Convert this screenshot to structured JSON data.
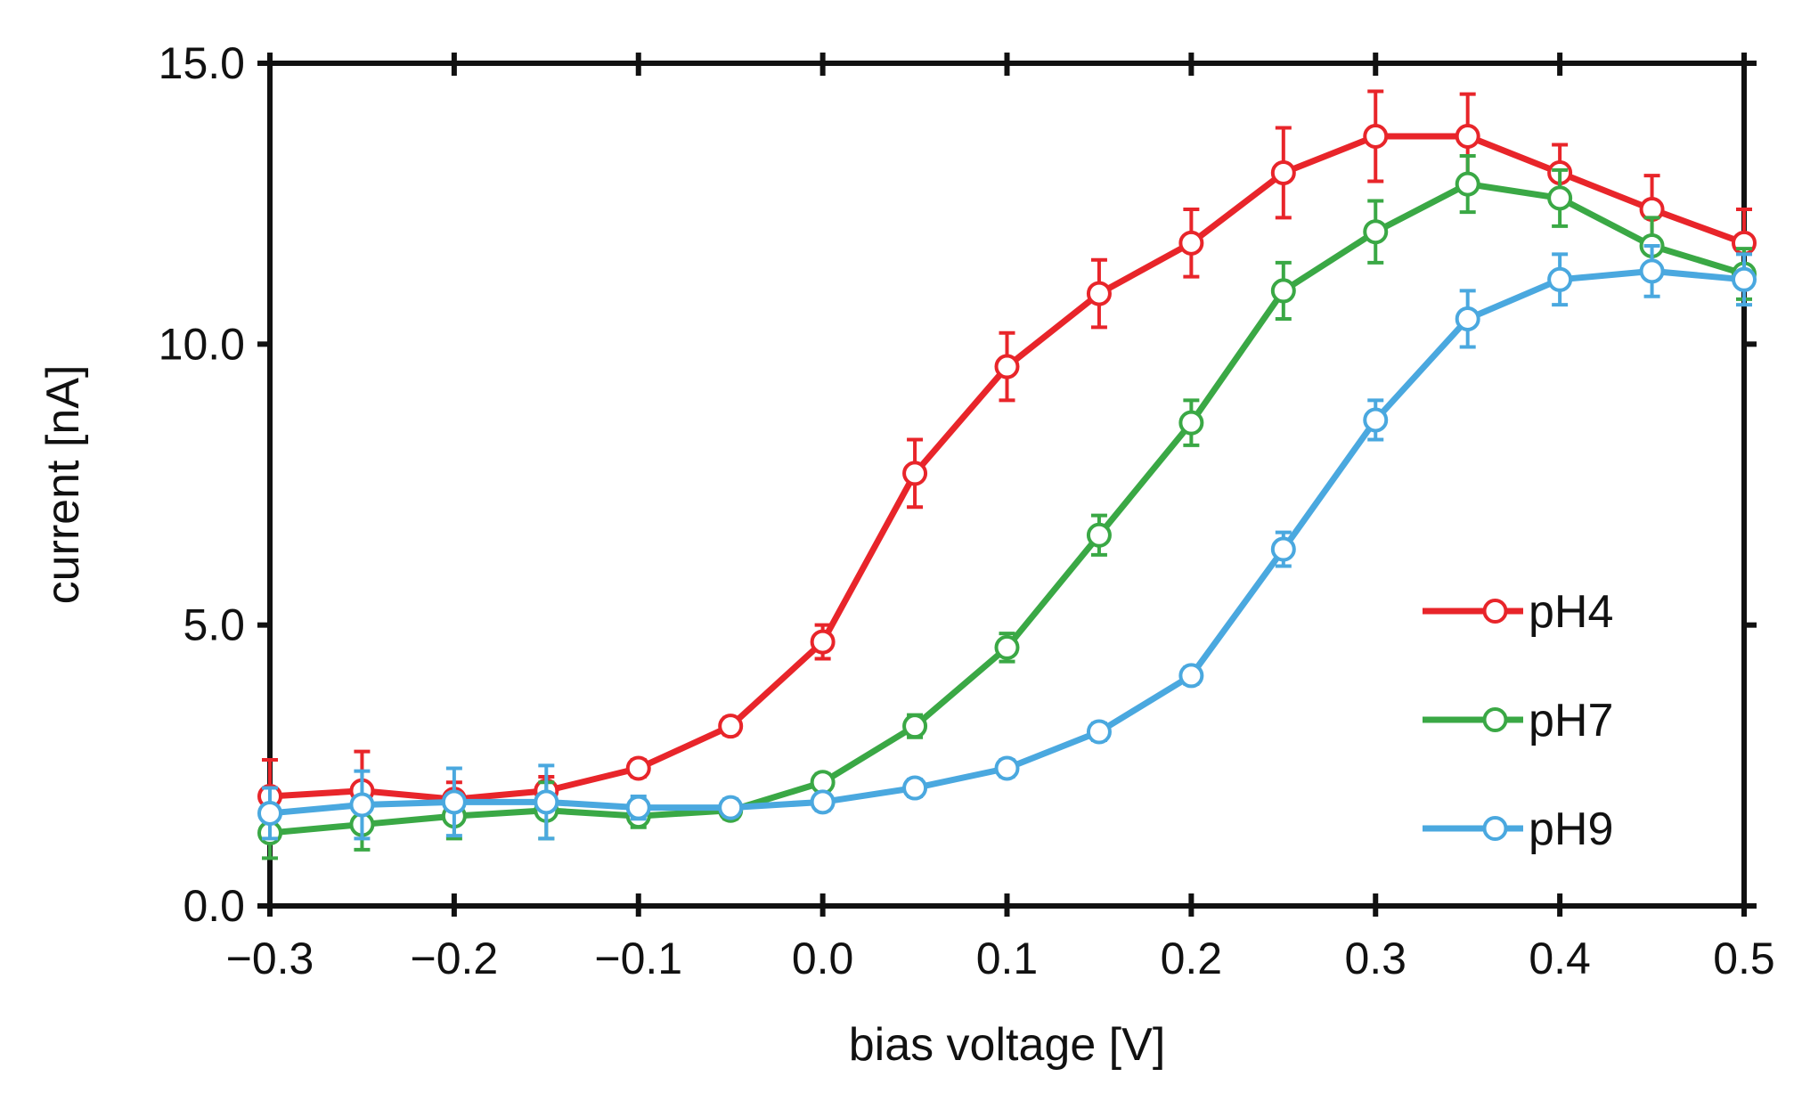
{
  "chart_data": {
    "type": "line",
    "title": "",
    "xlabel": "bias voltage [V]",
    "ylabel": "current [nA]",
    "xlim": [
      -0.3,
      0.5
    ],
    "ylim": [
      0,
      15
    ],
    "x_ticks": [
      -0.3,
      -0.2,
      -0.1,
      0.0,
      0.1,
      0.2,
      0.3,
      0.4,
      0.5
    ],
    "x_tick_labels": [
      "−0.3",
      "−0.2",
      "−0.1",
      "0.0",
      "0.1",
      "0.2",
      "0.3",
      "0.4",
      "0.5"
    ],
    "y_ticks": [
      0,
      5,
      10,
      15
    ],
    "y_tick_labels": [
      "0.0",
      "5.0",
      "10.0",
      "15.0"
    ],
    "grid": false,
    "legend_position": "bottom-right",
    "x": [
      -0.3,
      -0.25,
      -0.2,
      -0.15,
      -0.1,
      -0.05,
      0.0,
      0.05,
      0.1,
      0.15,
      0.2,
      0.25,
      0.3,
      0.35,
      0.4,
      0.45,
      0.5
    ],
    "series": [
      {
        "name": "pH4",
        "color": "#e8252a",
        "values": [
          1.95,
          2.05,
          1.9,
          2.05,
          2.45,
          3.2,
          4.7,
          7.7,
          9.6,
          10.9,
          11.8,
          13.05,
          13.7,
          13.7,
          13.05,
          12.4,
          11.8
        ],
        "errors": [
          0.65,
          0.7,
          0.3,
          0.25,
          0.15,
          0.15,
          0.3,
          0.6,
          0.6,
          0.6,
          0.6,
          0.8,
          0.8,
          0.75,
          0.5,
          0.6,
          0.6
        ]
      },
      {
        "name": "pH7",
        "color": "#3aa845",
        "values": [
          1.3,
          1.45,
          1.6,
          1.7,
          1.6,
          1.7,
          2.2,
          3.2,
          4.6,
          6.6,
          8.6,
          10.95,
          12.0,
          12.85,
          12.6,
          11.75,
          11.25
        ],
        "errors": [
          0.45,
          0.45,
          0.4,
          0.5,
          0.2,
          0.15,
          0.15,
          0.2,
          0.25,
          0.35,
          0.4,
          0.5,
          0.55,
          0.5,
          0.5,
          0.5,
          0.45
        ]
      },
      {
        "name": "pH9",
        "color": "#4aa8df",
        "values": [
          1.65,
          1.8,
          1.85,
          1.85,
          1.75,
          1.75,
          1.85,
          2.1,
          2.45,
          3.1,
          4.1,
          6.35,
          8.65,
          10.45,
          11.15,
          11.3,
          11.15
        ],
        "errors": [
          0.45,
          0.6,
          0.6,
          0.65,
          0.2,
          0.15,
          0.15,
          0.15,
          0.15,
          0.15,
          0.15,
          0.3,
          0.35,
          0.5,
          0.45,
          0.45,
          0.45
        ]
      }
    ]
  }
}
